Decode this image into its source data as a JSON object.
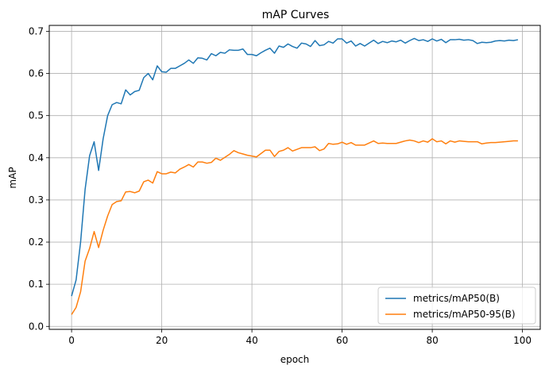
{
  "chart_data": {
    "type": "line",
    "title": "mAP Curves",
    "xlabel": "epoch",
    "ylabel": "mAP",
    "xlim": [
      -4.95,
      103.95
    ],
    "ylim": [
      -0.007,
      0.714
    ],
    "xticks": [
      0,
      20,
      40,
      60,
      80,
      100
    ],
    "yticks": [
      0.0,
      0.1,
      0.2,
      0.3,
      0.4,
      0.5,
      0.6,
      0.7
    ],
    "grid": true,
    "legend_position": "lower-right",
    "x": [
      0,
      1,
      2,
      3,
      4,
      5,
      6,
      7,
      8,
      9,
      10,
      11,
      12,
      13,
      14,
      15,
      16,
      17,
      18,
      19,
      20,
      21,
      22,
      23,
      24,
      25,
      26,
      27,
      28,
      29,
      30,
      31,
      32,
      33,
      34,
      35,
      36,
      37,
      38,
      39,
      40,
      41,
      42,
      43,
      44,
      45,
      46,
      47,
      48,
      49,
      50,
      51,
      52,
      53,
      54,
      55,
      56,
      57,
      58,
      59,
      60,
      61,
      62,
      63,
      64,
      65,
      66,
      67,
      68,
      69,
      70,
      71,
      72,
      73,
      74,
      75,
      76,
      77,
      78,
      79,
      80,
      81,
      82,
      83,
      84,
      85,
      86,
      87,
      88,
      89,
      90,
      91,
      92,
      93,
      94,
      95,
      96,
      97,
      98,
      99
    ],
    "series": [
      {
        "name": "metrics/mAP50(B)",
        "color": "#1f77b4",
        "values": [
          0.072,
          0.11,
          0.2,
          0.325,
          0.405,
          0.438,
          0.37,
          0.445,
          0.5,
          0.526,
          0.531,
          0.528,
          0.561,
          0.549,
          0.557,
          0.56,
          0.59,
          0.6,
          0.585,
          0.618,
          0.604,
          0.603,
          0.612,
          0.612,
          0.618,
          0.624,
          0.632,
          0.624,
          0.637,
          0.636,
          0.632,
          0.647,
          0.642,
          0.65,
          0.648,
          0.656,
          0.655,
          0.655,
          0.658,
          0.645,
          0.645,
          0.642,
          0.649,
          0.655,
          0.66,
          0.648,
          0.665,
          0.662,
          0.67,
          0.664,
          0.66,
          0.672,
          0.67,
          0.664,
          0.678,
          0.666,
          0.668,
          0.676,
          0.672,
          0.682,
          0.682,
          0.672,
          0.677,
          0.665,
          0.671,
          0.665,
          0.672,
          0.679,
          0.671,
          0.676,
          0.673,
          0.677,
          0.675,
          0.679,
          0.672,
          0.678,
          0.683,
          0.678,
          0.68,
          0.676,
          0.682,
          0.677,
          0.681,
          0.673,
          0.68,
          0.68,
          0.681,
          0.679,
          0.68,
          0.678,
          0.671,
          0.674,
          0.673,
          0.674,
          0.677,
          0.678,
          0.677,
          0.679,
          0.678,
          0.68
        ]
      },
      {
        "name": "metrics/mAP50-95(B)",
        "color": "#ff7f0e",
        "values": [
          0.028,
          0.045,
          0.082,
          0.155,
          0.185,
          0.225,
          0.187,
          0.228,
          0.262,
          0.289,
          0.296,
          0.298,
          0.319,
          0.32,
          0.317,
          0.321,
          0.343,
          0.347,
          0.34,
          0.367,
          0.362,
          0.362,
          0.366,
          0.364,
          0.373,
          0.378,
          0.384,
          0.378,
          0.39,
          0.39,
          0.387,
          0.389,
          0.399,
          0.394,
          0.401,
          0.408,
          0.417,
          0.412,
          0.409,
          0.406,
          0.404,
          0.402,
          0.41,
          0.418,
          0.418,
          0.403,
          0.415,
          0.418,
          0.424,
          0.416,
          0.42,
          0.424,
          0.424,
          0.424,
          0.426,
          0.417,
          0.421,
          0.434,
          0.432,
          0.433,
          0.437,
          0.432,
          0.436,
          0.43,
          0.43,
          0.43,
          0.435,
          0.44,
          0.434,
          0.435,
          0.434,
          0.434,
          0.434,
          0.437,
          0.44,
          0.442,
          0.44,
          0.436,
          0.44,
          0.437,
          0.445,
          0.438,
          0.44,
          0.433,
          0.44,
          0.437,
          0.44,
          0.439,
          0.438,
          0.438,
          0.438,
          0.433,
          0.435,
          0.436,
          0.436,
          0.437,
          0.438,
          0.439,
          0.44,
          0.44
        ]
      }
    ]
  }
}
